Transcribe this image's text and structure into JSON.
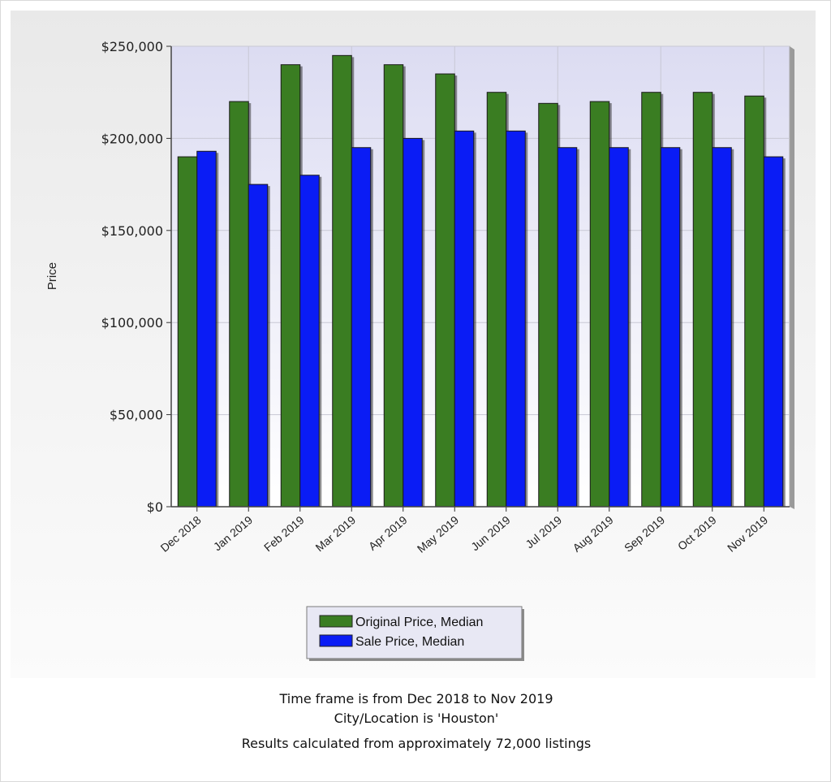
{
  "chart_data": {
    "type": "bar",
    "ylabel": "Price",
    "xlabel": "",
    "ylim": [
      0,
      250000
    ],
    "y_ticks": [
      {
        "value": 0,
        "label": "$0"
      },
      {
        "value": 50000,
        "label": "$50,000"
      },
      {
        "value": 100000,
        "label": "$100,000"
      },
      {
        "value": 150000,
        "label": "$150,000"
      },
      {
        "value": 200000,
        "label": "$200,000"
      },
      {
        "value": 250000,
        "label": "$250,000"
      }
    ],
    "categories": [
      "Dec 2018",
      "Jan 2019",
      "Feb 2019",
      "Mar 2019",
      "Apr 2019",
      "May 2019",
      "Jun 2019",
      "Jul 2019",
      "Aug 2019",
      "Sep 2019",
      "Oct 2019",
      "Nov 2019"
    ],
    "series": [
      {
        "name": "Original Price, Median",
        "color": "#3a7d22",
        "values": [
          190000,
          220000,
          240000,
          245000,
          240000,
          235000,
          225000,
          219000,
          220000,
          225000,
          225000,
          223000
        ]
      },
      {
        "name": "Sale Price, Median",
        "color": "#0a1cf5",
        "values": [
          193000,
          175000,
          180000,
          195000,
          200000,
          204000,
          204000,
          195000,
          195000,
          195000,
          195000,
          190000
        ]
      }
    ],
    "grid": true,
    "legend_position": "bottom-center"
  },
  "footer": {
    "line1": "Time frame is from Dec 2018 to Nov 2019",
    "line2": "City/Location is 'Houston'",
    "line3": "Results calculated from approximately 72,000 listings"
  }
}
